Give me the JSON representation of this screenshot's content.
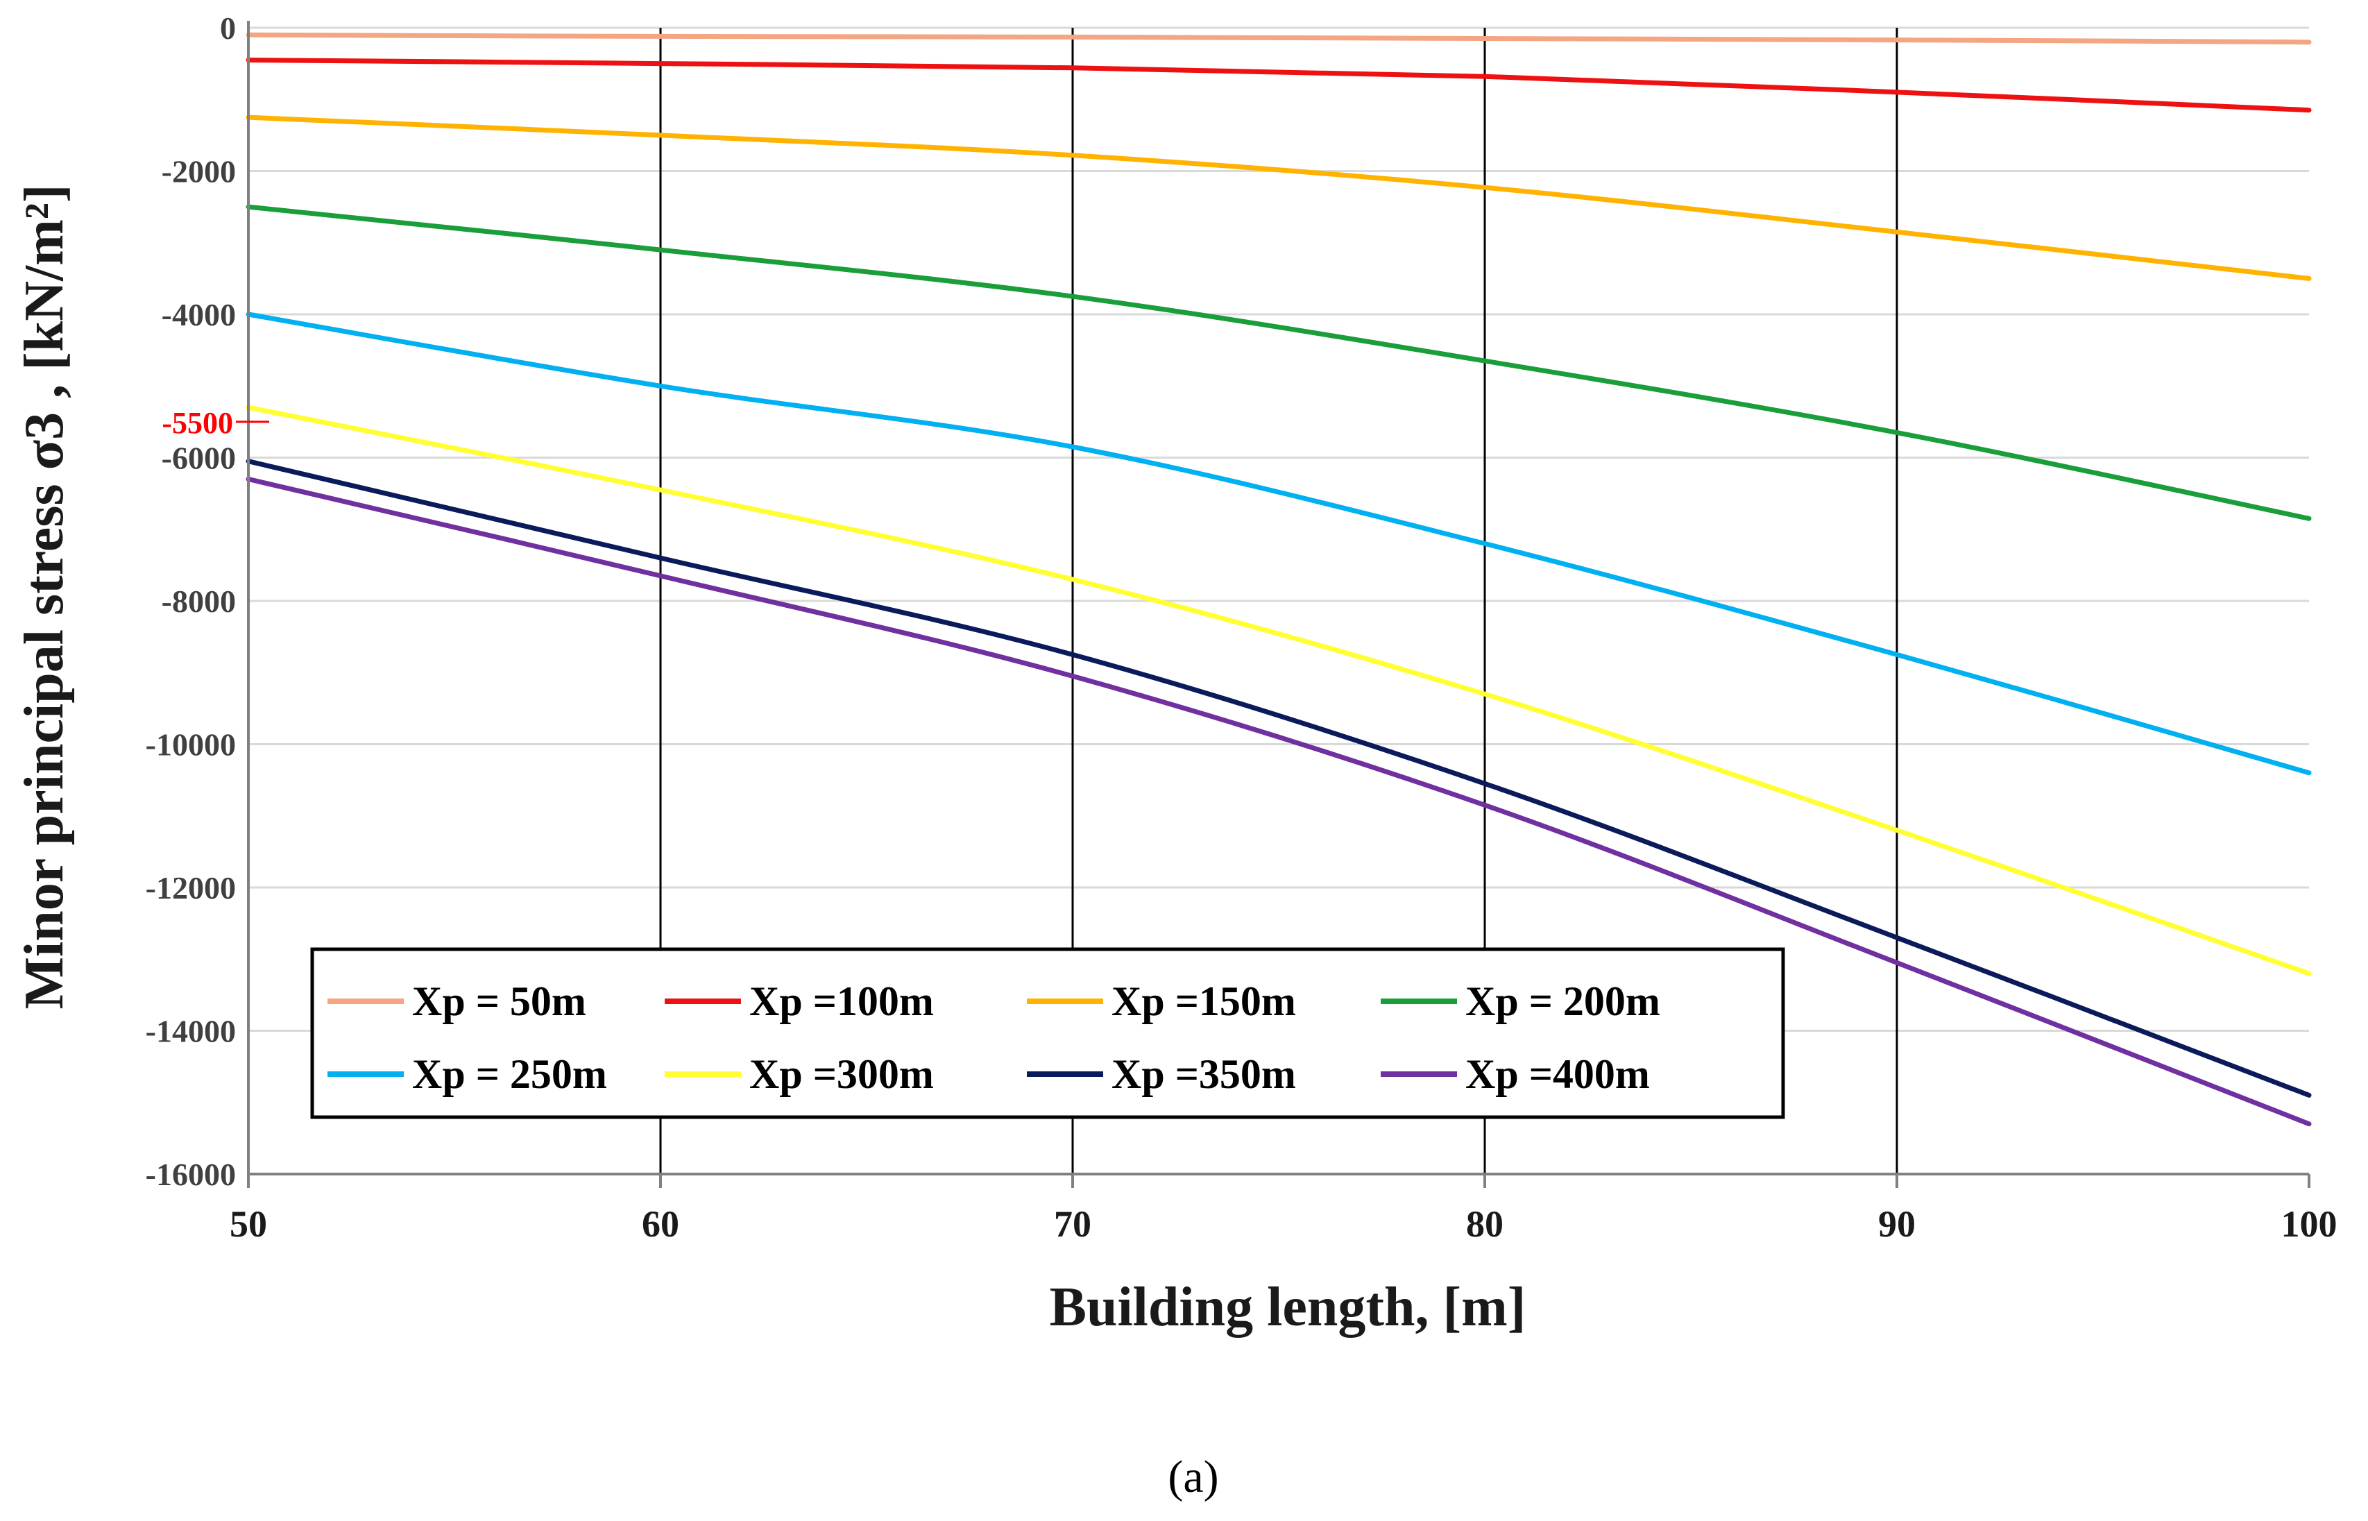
{
  "chart_data": {
    "type": "line",
    "title": "",
    "xlabel": "Building length, [m]",
    "ylabel": "Minor principal stress σ3 , [kN/m²]",
    "xlim": [
      50,
      100
    ],
    "ylim": [
      -16000,
      0
    ],
    "x_ticks": [
      50,
      60,
      70,
      80,
      90,
      100
    ],
    "y_ticks": [
      0,
      -2000,
      -4000,
      -6000,
      -8000,
      -10000,
      -12000,
      -14000,
      -16000
    ],
    "vertical_grid": true,
    "horizontal_grid": true,
    "legend_placement": "bottom-left",
    "legend_columns": 4,
    "x": [
      50,
      60,
      70,
      80,
      90,
      100
    ],
    "series": [
      {
        "name": "Xp = 50m",
        "color": "#f4a582",
        "values": [
          -100,
          -120,
          -130,
          -150,
          -170,
          -200
        ]
      },
      {
        "name": "Xp =100m",
        "color": "#ee1111",
        "values": [
          -450,
          -500,
          -560,
          -680,
          -900,
          -1150
        ]
      },
      {
        "name": "Xp =150m",
        "color": "#ffb300",
        "values": [
          -1250,
          -1500,
          -1780,
          -2230,
          -2850,
          -3500
        ]
      },
      {
        "name": "Xp = 200m",
        "color": "#1a9e3a",
        "values": [
          -2500,
          -3100,
          -3750,
          -4650,
          -5650,
          -6850
        ]
      },
      {
        "name": "Xp = 250m",
        "color": "#00b0f0",
        "values": [
          -4000,
          -5000,
          -5850,
          -7200,
          -8750,
          -10400
        ]
      },
      {
        "name": "Xp =300m",
        "color": "#ffff33",
        "values": [
          -5300,
          -6450,
          -7700,
          -9300,
          -11200,
          -13200
        ]
      },
      {
        "name": "Xp =350m",
        "color": "#0b1a5a",
        "values": [
          -6050,
          -7400,
          -8750,
          -10550,
          -12700,
          -14900
        ]
      },
      {
        "name": "Xp =400m",
        "color": "#7030a0",
        "values": [
          -6300,
          -7650,
          -9050,
          -10850,
          -13050,
          -15300
        ]
      }
    ],
    "annotation": {
      "text": "-5500",
      "y": -5500,
      "color": "#ff0000"
    },
    "caption": "(a)"
  }
}
